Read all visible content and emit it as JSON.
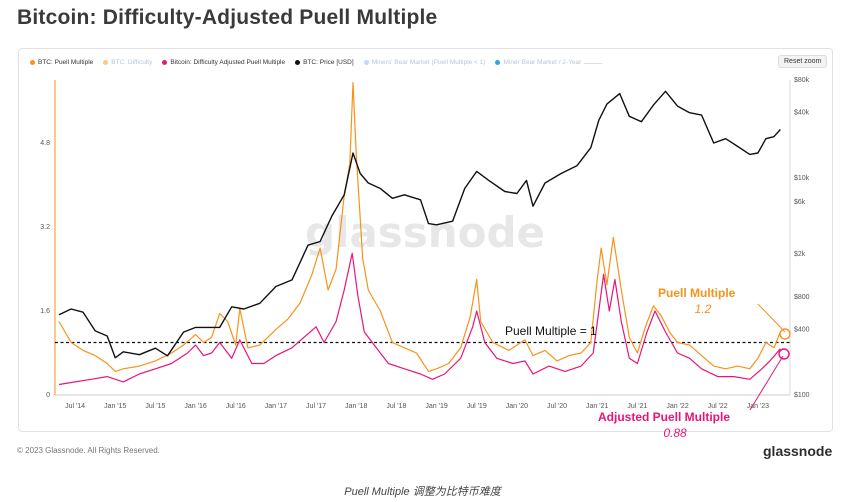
{
  "title": "Bitcoin: Difficulty-Adjusted Puell Multiple",
  "reset_label": "Reset zoom",
  "watermark": "glassnode",
  "copyright": "© 2023 Glassnode. All Rights Reserved.",
  "brand": "glassnode",
  "caption": "Puell Multiple 调整为比特币难度",
  "legend": [
    {
      "label": "BTC: Puell Multiple",
      "color": "#f7931a",
      "faded": false
    },
    {
      "label": "BTC: Difficulty",
      "color": "#f7c98a",
      "faded": true
    },
    {
      "label": "Bitcoin: Difficulty Adjusted Puell Multiple",
      "color": "#e8157a",
      "faded": false
    },
    {
      "label": "BTC: Price [USD]",
      "color": "#111111",
      "faded": false
    },
    {
      "label": "Miners' Bear Market (Puell Multiple < 1)",
      "color": "#c9d6ee",
      "faded": true
    },
    {
      "label": "Miner Bear Market / 2-Year",
      "color": "#3aa3d6",
      "faded": true
    }
  ],
  "annotations": {
    "threshold_label": "Puell Multiple = 1",
    "puell_label": "Puell Multiple",
    "puell_value": "1.2",
    "adjusted_label": "Adjusted Puell Multiple",
    "adjusted_value": "0.88"
  },
  "chart_data": {
    "type": "line",
    "title": "Bitcoin: Difficulty-Adjusted Puell Multiple",
    "x_ticks": [
      "Jul '14",
      "Jan '15",
      "Jul '15",
      "Jan '16",
      "Jul '16",
      "Jan '17",
      "Jul '17",
      "Jan '18",
      "Jul '18",
      "Jan '19",
      "Jul '19",
      "Jan '20",
      "Jul '20",
      "Jan '21",
      "Jul '21",
      "Jan '22",
      "Jul '22",
      "Jan '23"
    ],
    "x_range": [
      2014.25,
      2023.4
    ],
    "y_left": {
      "ticks": [
        "0",
        "1.6",
        "3.2",
        "4.8"
      ],
      "values": [
        0,
        1.6,
        3.2,
        4.8
      ],
      "range": [
        0,
        6.0
      ]
    },
    "y_right": {
      "scale": "log",
      "ticks": [
        "$100",
        "$400",
        "$800",
        "$2k",
        "$6k",
        "$10k",
        "$40k",
        "$80k"
      ],
      "values": [
        100,
        400,
        800,
        2000,
        6000,
        10000,
        40000,
        80000
      ],
      "range": [
        100,
        80000
      ]
    },
    "threshold": 1,
    "series": [
      {
        "name": "BTC: Puell Multiple",
        "axis": "left",
        "color": "#f7931a",
        "points": [
          [
            2014.3,
            1.4
          ],
          [
            2014.45,
            1.0
          ],
          [
            2014.6,
            0.85
          ],
          [
            2014.75,
            0.75
          ],
          [
            2014.9,
            0.6
          ],
          [
            2015.0,
            0.45
          ],
          [
            2015.1,
            0.5
          ],
          [
            2015.3,
            0.55
          ],
          [
            2015.5,
            0.65
          ],
          [
            2015.7,
            0.8
          ],
          [
            2015.85,
            0.95
          ],
          [
            2016.0,
            1.15
          ],
          [
            2016.1,
            1.0
          ],
          [
            2016.2,
            1.1
          ],
          [
            2016.3,
            1.55
          ],
          [
            2016.4,
            1.4
          ],
          [
            2016.5,
            0.95
          ],
          [
            2016.55,
            1.65
          ],
          [
            2016.65,
            0.9
          ],
          [
            2016.8,
            0.95
          ],
          [
            2017.0,
            1.25
          ],
          [
            2017.15,
            1.45
          ],
          [
            2017.3,
            1.75
          ],
          [
            2017.45,
            2.3
          ],
          [
            2017.55,
            2.8
          ],
          [
            2017.65,
            2.0
          ],
          [
            2017.75,
            2.4
          ],
          [
            2017.85,
            3.8
          ],
          [
            2017.92,
            4.4
          ],
          [
            2017.96,
            5.95
          ],
          [
            2018.0,
            4.6
          ],
          [
            2018.08,
            2.6
          ],
          [
            2018.15,
            2.0
          ],
          [
            2018.3,
            1.6
          ],
          [
            2018.45,
            1.0
          ],
          [
            2018.6,
            0.9
          ],
          [
            2018.75,
            0.8
          ],
          [
            2018.9,
            0.45
          ],
          [
            2019.0,
            0.5
          ],
          [
            2019.15,
            0.6
          ],
          [
            2019.3,
            0.9
          ],
          [
            2019.42,
            1.5
          ],
          [
            2019.5,
            2.2
          ],
          [
            2019.55,
            1.4
          ],
          [
            2019.7,
            1.0
          ],
          [
            2019.9,
            0.85
          ],
          [
            2020.0,
            0.95
          ],
          [
            2020.1,
            1.05
          ],
          [
            2020.2,
            0.75
          ],
          [
            2020.35,
            0.85
          ],
          [
            2020.5,
            0.65
          ],
          [
            2020.65,
            0.75
          ],
          [
            2020.8,
            0.8
          ],
          [
            2020.92,
            1.0
          ],
          [
            2021.0,
            2.2
          ],
          [
            2021.05,
            2.8
          ],
          [
            2021.12,
            2.1
          ],
          [
            2021.2,
            3.0
          ],
          [
            2021.3,
            2.0
          ],
          [
            2021.4,
            1.1
          ],
          [
            2021.5,
            0.8
          ],
          [
            2021.6,
            1.3
          ],
          [
            2021.7,
            1.7
          ],
          [
            2021.8,
            1.5
          ],
          [
            2021.9,
            1.2
          ],
          [
            2022.0,
            1.0
          ],
          [
            2022.15,
            0.95
          ],
          [
            2022.3,
            0.75
          ],
          [
            2022.45,
            0.55
          ],
          [
            2022.6,
            0.5
          ],
          [
            2022.75,
            0.55
          ],
          [
            2022.9,
            0.5
          ],
          [
            2023.0,
            0.7
          ],
          [
            2023.1,
            1.0
          ],
          [
            2023.2,
            0.9
          ],
          [
            2023.28,
            1.2
          ]
        ]
      },
      {
        "name": "Bitcoin: Difficulty Adjusted Puell Multiple",
        "axis": "left",
        "color": "#e8157a",
        "points": [
          [
            2014.3,
            0.2
          ],
          [
            2014.5,
            0.25
          ],
          [
            2014.7,
            0.3
          ],
          [
            2014.9,
            0.35
          ],
          [
            2015.1,
            0.25
          ],
          [
            2015.3,
            0.4
          ],
          [
            2015.5,
            0.5
          ],
          [
            2015.7,
            0.6
          ],
          [
            2015.9,
            0.8
          ],
          [
            2016.0,
            0.95
          ],
          [
            2016.1,
            0.75
          ],
          [
            2016.2,
            0.8
          ],
          [
            2016.3,
            1.0
          ],
          [
            2016.45,
            0.7
          ],
          [
            2016.55,
            1.05
          ],
          [
            2016.7,
            0.6
          ],
          [
            2016.85,
            0.6
          ],
          [
            2017.0,
            0.75
          ],
          [
            2017.2,
            0.9
          ],
          [
            2017.35,
            1.1
          ],
          [
            2017.5,
            1.3
          ],
          [
            2017.6,
            1.0
          ],
          [
            2017.75,
            1.4
          ],
          [
            2017.85,
            2.0
          ],
          [
            2017.95,
            2.7
          ],
          [
            2018.02,
            1.9
          ],
          [
            2018.1,
            1.2
          ],
          [
            2018.25,
            0.9
          ],
          [
            2018.4,
            0.6
          ],
          [
            2018.6,
            0.5
          ],
          [
            2018.8,
            0.4
          ],
          [
            2018.95,
            0.3
          ],
          [
            2019.1,
            0.4
          ],
          [
            2019.3,
            0.7
          ],
          [
            2019.45,
            1.3
          ],
          [
            2019.5,
            1.6
          ],
          [
            2019.6,
            1.0
          ],
          [
            2019.75,
            0.7
          ],
          [
            2019.95,
            0.6
          ],
          [
            2020.1,
            0.65
          ],
          [
            2020.2,
            0.4
          ],
          [
            2020.4,
            0.55
          ],
          [
            2020.6,
            0.45
          ],
          [
            2020.8,
            0.55
          ],
          [
            2020.95,
            0.8
          ],
          [
            2021.02,
            1.6
          ],
          [
            2021.08,
            2.3
          ],
          [
            2021.15,
            1.6
          ],
          [
            2021.22,
            2.2
          ],
          [
            2021.3,
            1.4
          ],
          [
            2021.4,
            0.7
          ],
          [
            2021.5,
            0.6
          ],
          [
            2021.62,
            1.2
          ],
          [
            2021.72,
            1.6
          ],
          [
            2021.85,
            1.2
          ],
          [
            2022.0,
            0.8
          ],
          [
            2022.15,
            0.7
          ],
          [
            2022.3,
            0.5
          ],
          [
            2022.5,
            0.35
          ],
          [
            2022.7,
            0.35
          ],
          [
            2022.9,
            0.3
          ],
          [
            2023.05,
            0.5
          ],
          [
            2023.15,
            0.65
          ],
          [
            2023.28,
            0.88
          ]
        ]
      },
      {
        "name": "BTC: Price [USD]",
        "axis": "right",
        "color": "#111111",
        "points": [
          [
            2014.3,
            550
          ],
          [
            2014.45,
            620
          ],
          [
            2014.6,
            580
          ],
          [
            2014.75,
            390
          ],
          [
            2014.9,
            350
          ],
          [
            2015.0,
            220
          ],
          [
            2015.1,
            250
          ],
          [
            2015.3,
            235
          ],
          [
            2015.5,
            270
          ],
          [
            2015.65,
            230
          ],
          [
            2015.85,
            380
          ],
          [
            2016.0,
            420
          ],
          [
            2016.3,
            420
          ],
          [
            2016.45,
            650
          ],
          [
            2016.6,
            620
          ],
          [
            2016.8,
            700
          ],
          [
            2017.0,
            1000
          ],
          [
            2017.2,
            1150
          ],
          [
            2017.4,
            2400
          ],
          [
            2017.55,
            2600
          ],
          [
            2017.7,
            4500
          ],
          [
            2017.85,
            7000
          ],
          [
            2017.96,
            17000
          ],
          [
            2018.05,
            11000
          ],
          [
            2018.15,
            9000
          ],
          [
            2018.3,
            8000
          ],
          [
            2018.45,
            6500
          ],
          [
            2018.6,
            7000
          ],
          [
            2018.8,
            6300
          ],
          [
            2018.9,
            3800
          ],
          [
            2019.0,
            3700
          ],
          [
            2019.2,
            4000
          ],
          [
            2019.35,
            8000
          ],
          [
            2019.5,
            11500
          ],
          [
            2019.65,
            9500
          ],
          [
            2019.85,
            7500
          ],
          [
            2020.0,
            7200
          ],
          [
            2020.12,
            9500
          ],
          [
            2020.2,
            5500
          ],
          [
            2020.35,
            9000
          ],
          [
            2020.55,
            11000
          ],
          [
            2020.75,
            13000
          ],
          [
            2020.92,
            19000
          ],
          [
            2021.02,
            34000
          ],
          [
            2021.12,
            48000
          ],
          [
            2021.28,
            60000
          ],
          [
            2021.4,
            37000
          ],
          [
            2021.55,
            33000
          ],
          [
            2021.7,
            47000
          ],
          [
            2021.85,
            63000
          ],
          [
            2022.0,
            46000
          ],
          [
            2022.15,
            40000
          ],
          [
            2022.3,
            38000
          ],
          [
            2022.45,
            21000
          ],
          [
            2022.6,
            23000
          ],
          [
            2022.75,
            19500
          ],
          [
            2022.9,
            16500
          ],
          [
            2023.0,
            17000
          ],
          [
            2023.1,
            23000
          ],
          [
            2023.2,
            24000
          ],
          [
            2023.28,
            28000
          ]
        ]
      }
    ]
  }
}
